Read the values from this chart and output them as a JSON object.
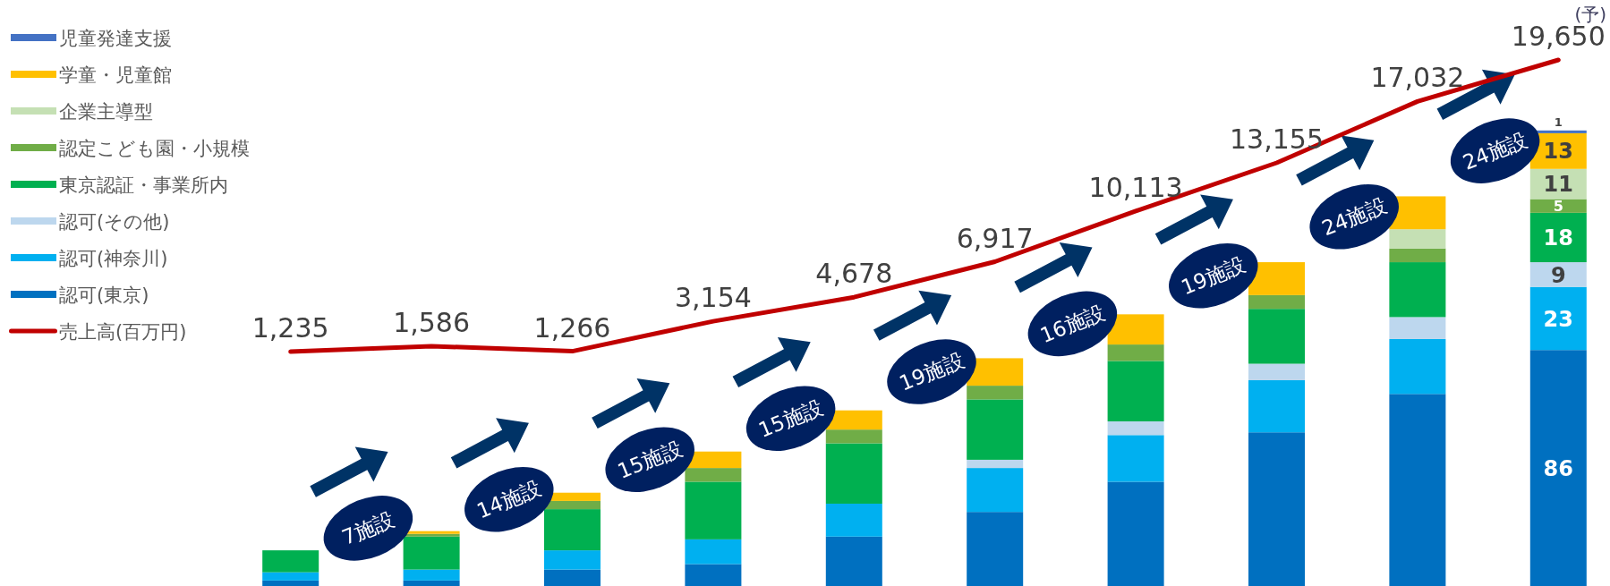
{
  "chart_data": [
    {
      "type": "bar",
      "stacked": true,
      "legend": "left",
      "categories": [
        null,
        null,
        null,
        null,
        null,
        null,
        null,
        null,
        null,
        null
      ],
      "series": [
        {
          "name": "認可(東京)",
          "color": "#0070c0",
          "values": [
            2,
            2,
            6,
            8,
            18,
            27,
            38,
            56,
            70,
            86
          ],
          "value_labels": [
            null,
            null,
            null,
            null,
            null,
            null,
            null,
            null,
            null,
            "86"
          ]
        },
        {
          "name": "認可(神奈川)",
          "color": "#00b0f0",
          "values": [
            3,
            4,
            7,
            9,
            12,
            16,
            17,
            19,
            20,
            23
          ],
          "value_labels": [
            null,
            null,
            null,
            null,
            null,
            null,
            null,
            null,
            null,
            "23"
          ]
        },
        {
          "name": "認可(その他)",
          "color": "#bdd7ee",
          "values": [
            0,
            0,
            0,
            0,
            0,
            3,
            5,
            6,
            8,
            9
          ],
          "value_labels": [
            null,
            null,
            null,
            null,
            null,
            null,
            null,
            null,
            null,
            "9"
          ]
        },
        {
          "name": "東京認証・事業所内",
          "color": "#00b050",
          "values": [
            8,
            12,
            15,
            21,
            22,
            22,
            22,
            20,
            20,
            18
          ],
          "value_labels": [
            null,
            null,
            null,
            null,
            null,
            null,
            null,
            null,
            null,
            "18"
          ]
        },
        {
          "name": "認定こども園・小規模",
          "color": "#70ad47",
          "values": [
            0,
            1,
            3,
            5,
            5,
            5,
            6,
            5,
            5,
            5
          ],
          "value_labels": [
            null,
            null,
            null,
            null,
            null,
            null,
            null,
            null,
            null,
            "5"
          ]
        },
        {
          "name": "企業主導型",
          "color": "#c5e0b4",
          "values": [
            0,
            0,
            0,
            0,
            0,
            0,
            0,
            0,
            7,
            11
          ],
          "value_labels": [
            null,
            null,
            null,
            null,
            null,
            null,
            null,
            null,
            null,
            "11"
          ]
        },
        {
          "name": "学童・児童館",
          "color": "#ffc000",
          "values": [
            0,
            1,
            3,
            6,
            7,
            10,
            11,
            12,
            12,
            13
          ],
          "value_labels": [
            null,
            null,
            null,
            null,
            null,
            null,
            null,
            null,
            null,
            "13"
          ]
        },
        {
          "name": "児童発達支援",
          "color": "#4472c4",
          "values": [
            0,
            0,
            0,
            0,
            0,
            0,
            0,
            0,
            0,
            1
          ],
          "value_labels": [
            null,
            null,
            null,
            null,
            null,
            null,
            null,
            null,
            null,
            "1"
          ]
        }
      ],
      "annotations": [
        "7施設",
        "14施設",
        "15施設",
        "15施設",
        "19施設",
        "16施設",
        "19施設",
        "24施設",
        "24施設"
      ]
    },
    {
      "type": "line",
      "legend": "left",
      "line_style": "solid",
      "categories": [
        null,
        null,
        null,
        null,
        null,
        null,
        null,
        null,
        null,
        null
      ],
      "series": [
        {
          "name": "売上高(百万円)",
          "color": "#c00000",
          "values": [
            1235,
            1586,
            1266,
            3154,
            4678,
            6917,
            10113,
            13155,
            17032,
            19650
          ],
          "value_labels": [
            "1,235",
            "1,586",
            "1,266",
            "3,154",
            "4,678",
            "6,917",
            "10,113",
            "13,155",
            "17,032",
            "19,650"
          ]
        }
      ],
      "annotations": [
        "(予)"
      ]
    }
  ]
}
